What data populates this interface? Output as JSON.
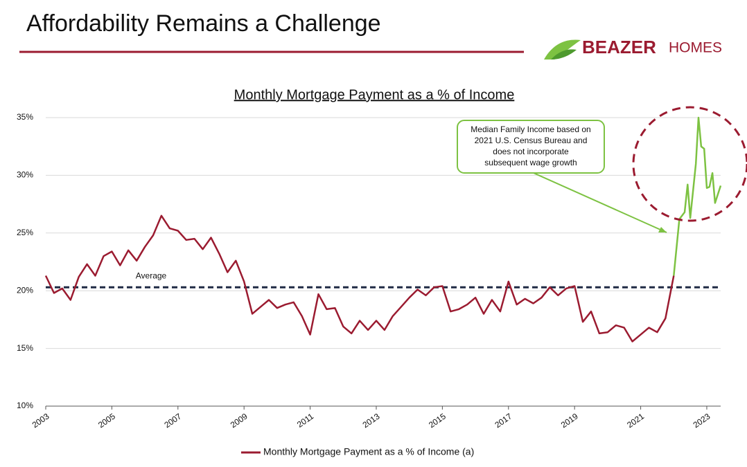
{
  "page_title": "Affordability Remains a Challenge",
  "logo": {
    "brand": "BEAZER",
    "suffix": "HOMES"
  },
  "chart_data": {
    "type": "line",
    "title": "Monthly Mortgage Payment as a % of Income",
    "annotation": "Median Family Income based on 2021 U.S. Census Bureau and does not incorporate subsequent wage growth",
    "average": {
      "label": "Average",
      "value": 20.3,
      "color": "#1f2a44"
    },
    "highlight_from": 2022,
    "highlight_color": "#7dc242",
    "xlim": [
      2003,
      2023.42
    ],
    "xticks": [
      2003,
      2005,
      2007,
      2009,
      2011,
      2013,
      2015,
      2017,
      2019,
      2021,
      2023
    ],
    "ylim": [
      10,
      35
    ],
    "yticks": [
      {
        "value": 10,
        "label": "10%"
      },
      {
        "value": 15,
        "label": "15%"
      },
      {
        "value": 20,
        "label": "20%"
      },
      {
        "value": 25,
        "label": "25%"
      },
      {
        "value": 30,
        "label": "30%"
      },
      {
        "value": 35,
        "label": "35%"
      }
    ],
    "grid": true,
    "legend": "bottom",
    "x": [
      2003,
      2003.25,
      2003.5,
      2003.75,
      2004,
      2004.25,
      2004.5,
      2004.75,
      2005,
      2005.25,
      2005.5,
      2005.75,
      2006,
      2006.25,
      2006.5,
      2006.75,
      2007,
      2007.25,
      2007.5,
      2007.75,
      2008,
      2008.25,
      2008.5,
      2008.75,
      2009,
      2009.25,
      2009.5,
      2009.75,
      2010,
      2010.25,
      2010.5,
      2010.75,
      2011,
      2011.25,
      2011.5,
      2011.75,
      2012,
      2012.25,
      2012.5,
      2012.75,
      2013,
      2013.25,
      2013.5,
      2013.75,
      2014,
      2014.25,
      2014.5,
      2014.75,
      2015,
      2015.25,
      2015.5,
      2015.75,
      2016,
      2016.25,
      2016.5,
      2016.75,
      2017,
      2017.25,
      2017.5,
      2017.75,
      2018,
      2018.25,
      2018.5,
      2018.75,
      2019,
      2019.25,
      2019.5,
      2019.75,
      2020,
      2020.25,
      2020.5,
      2020.75,
      2021,
      2021.25,
      2021.5,
      2021.75,
      2022,
      2022.17,
      2022.33,
      2022.42,
      2022.5,
      2022.67,
      2022.75,
      2022.83,
      2022.92,
      2023,
      2023.08,
      2023.17,
      2023.25,
      2023.42
    ],
    "series": [
      {
        "name": "Monthly Mortgage Payment as a % of Income (a)",
        "color": "#9b1b30",
        "values": [
          21.3,
          19.8,
          20.2,
          19.2,
          21.2,
          22.3,
          21.3,
          23.0,
          23.4,
          22.2,
          23.5,
          22.6,
          23.8,
          24.8,
          26.5,
          25.4,
          25.2,
          24.4,
          24.5,
          23.6,
          24.6,
          23.2,
          21.6,
          22.6,
          20.8,
          18.0,
          18.6,
          19.2,
          18.5,
          18.8,
          19.0,
          17.8,
          16.2,
          19.7,
          18.4,
          18.5,
          16.9,
          16.3,
          17.4,
          16.6,
          17.4,
          16.6,
          17.8,
          18.6,
          19.4,
          20.1,
          19.6,
          20.3,
          20.4,
          18.2,
          18.4,
          18.8,
          19.4,
          18.0,
          19.2,
          18.2,
          20.8,
          18.8,
          19.3,
          18.9,
          19.4,
          20.3,
          19.6,
          20.2,
          20.4,
          17.3,
          18.2,
          16.3,
          16.4,
          17.0,
          16.8,
          15.6,
          16.2,
          16.8,
          16.4,
          17.6,
          21.3,
          26.2,
          26.8,
          29.2,
          26.3,
          31.0,
          35.0,
          32.5,
          32.3,
          28.9,
          29.0,
          30.2,
          27.6,
          29.1
        ]
      }
    ]
  }
}
